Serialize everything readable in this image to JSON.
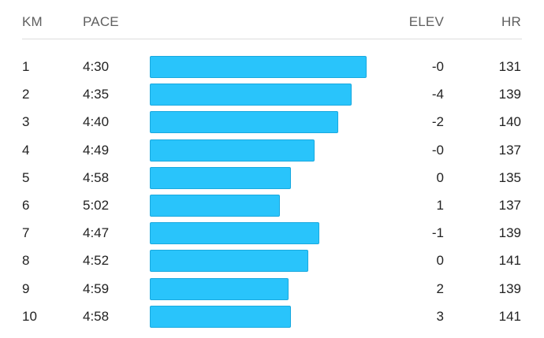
{
  "columns": {
    "km": "KM",
    "pace": "PACE",
    "elev": "ELEV",
    "hr": "HR"
  },
  "colors": {
    "bar": "#29c4fb",
    "header_text": "#5f5f5f",
    "divider": "#dedede"
  },
  "splits": [
    {
      "km": "1",
      "pace": "4:30",
      "elev": "-0",
      "hr": "131",
      "speed_fraction": 1.0
    },
    {
      "km": "2",
      "pace": "4:35",
      "elev": "-4",
      "hr": "139",
      "speed_fraction": 0.93
    },
    {
      "km": "3",
      "pace": "4:40",
      "elev": "-2",
      "hr": "140",
      "speed_fraction": 0.87
    },
    {
      "km": "4",
      "pace": "4:49",
      "elev": "-0",
      "hr": "137",
      "speed_fraction": 0.76
    },
    {
      "km": "5",
      "pace": "4:58",
      "elev": "0",
      "hr": "135",
      "speed_fraction": 0.65
    },
    {
      "km": "6",
      "pace": "5:02",
      "elev": "1",
      "hr": "137",
      "speed_fraction": 0.6
    },
    {
      "km": "7",
      "pace": "4:47",
      "elev": "-1",
      "hr": "139",
      "speed_fraction": 0.78
    },
    {
      "km": "8",
      "pace": "4:52",
      "elev": "0",
      "hr": "141",
      "speed_fraction": 0.73
    },
    {
      "km": "9",
      "pace": "4:59",
      "elev": "2",
      "hr": "139",
      "speed_fraction": 0.64
    },
    {
      "km": "10",
      "pace": "4:58",
      "elev": "3",
      "hr": "141",
      "speed_fraction": 0.65
    }
  ]
}
